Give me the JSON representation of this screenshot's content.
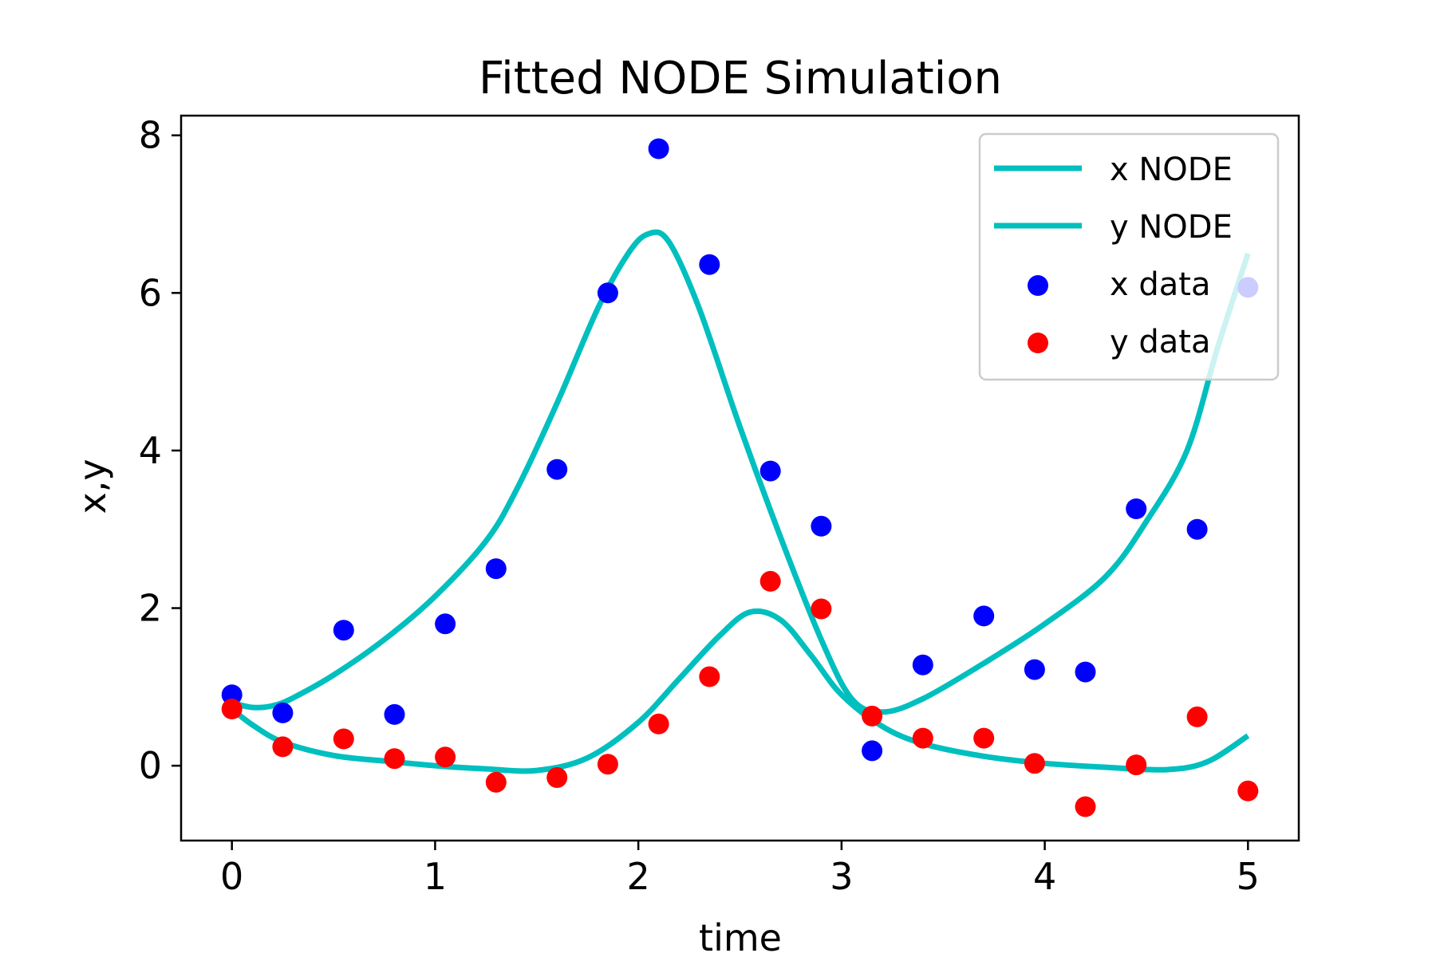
{
  "chart_data": {
    "type": "line",
    "title": "Fitted NODE Simulation",
    "xlabel": "time",
    "ylabel": "x,y",
    "xlim": [
      -0.25,
      5.25
    ],
    "ylim": [
      -0.95,
      8.25
    ],
    "xticks": [
      0,
      1,
      2,
      3,
      4,
      5
    ],
    "yticks": [
      0,
      2,
      4,
      6,
      8
    ],
    "grid": false,
    "legend": {
      "placement": "top-right"
    },
    "colors": {
      "node": "#00BFBF",
      "x_data": "#0000FF",
      "y_data": "#FF0000"
    },
    "series": [
      {
        "name": "x NODE",
        "style": "line",
        "x": [
          0,
          0.1,
          0.2,
          0.3,
          0.5,
          0.75,
          1.0,
          1.25,
          1.4,
          1.6,
          1.8,
          1.95,
          2.05,
          2.15,
          2.3,
          2.5,
          2.7,
          2.9,
          3.05,
          3.2,
          3.4,
          3.7,
          4.0,
          4.3,
          4.5,
          4.7,
          4.85,
          5.0
        ],
        "y": [
          0.8,
          0.74,
          0.76,
          0.86,
          1.15,
          1.6,
          2.15,
          2.85,
          3.5,
          4.6,
          5.8,
          6.5,
          6.75,
          6.65,
          5.8,
          4.3,
          2.9,
          1.6,
          0.85,
          0.68,
          0.85,
          1.3,
          1.8,
          2.4,
          3.1,
          4.0,
          5.3,
          6.5
        ]
      },
      {
        "name": "y NODE",
        "style": "line",
        "x": [
          0,
          0.1,
          0.25,
          0.5,
          0.75,
          1.0,
          1.25,
          1.5,
          1.75,
          2.0,
          2.2,
          2.4,
          2.55,
          2.7,
          2.85,
          3.0,
          3.2,
          3.4,
          3.7,
          4.0,
          4.3,
          4.6,
          4.8,
          5.0
        ],
        "y": [
          0.72,
          0.52,
          0.3,
          0.13,
          0.06,
          0.0,
          -0.04,
          -0.06,
          0.1,
          0.55,
          1.1,
          1.65,
          1.95,
          1.85,
          1.4,
          0.9,
          0.5,
          0.28,
          0.12,
          0.03,
          -0.02,
          -0.05,
          0.05,
          0.38
        ]
      },
      {
        "name": "x data",
        "style": "points",
        "x": [
          0,
          0.25,
          0.55,
          0.8,
          1.05,
          1.3,
          1.6,
          1.85,
          2.1,
          2.35,
          2.65,
          2.9,
          3.15,
          3.4,
          3.7,
          3.95,
          4.2,
          4.45,
          4.75,
          5.0
        ],
        "y": [
          0.9,
          0.67,
          1.72,
          0.65,
          1.8,
          2.5,
          3.76,
          6.0,
          7.83,
          6.36,
          3.74,
          3.04,
          0.19,
          1.28,
          1.9,
          1.22,
          1.19,
          3.26,
          3.0,
          6.07
        ]
      },
      {
        "name": "y data",
        "style": "points",
        "x": [
          0,
          0.25,
          0.55,
          0.8,
          1.05,
          1.3,
          1.6,
          1.85,
          2.1,
          2.35,
          2.65,
          2.9,
          3.15,
          3.4,
          3.7,
          3.95,
          4.2,
          4.45,
          4.75,
          5.0
        ],
        "y": [
          0.72,
          0.24,
          0.34,
          0.09,
          0.11,
          -0.21,
          -0.15,
          0.02,
          0.53,
          1.13,
          2.34,
          1.99,
          0.63,
          0.35,
          0.35,
          0.03,
          -0.52,
          0.01,
          0.62,
          -0.32
        ]
      }
    ]
  }
}
